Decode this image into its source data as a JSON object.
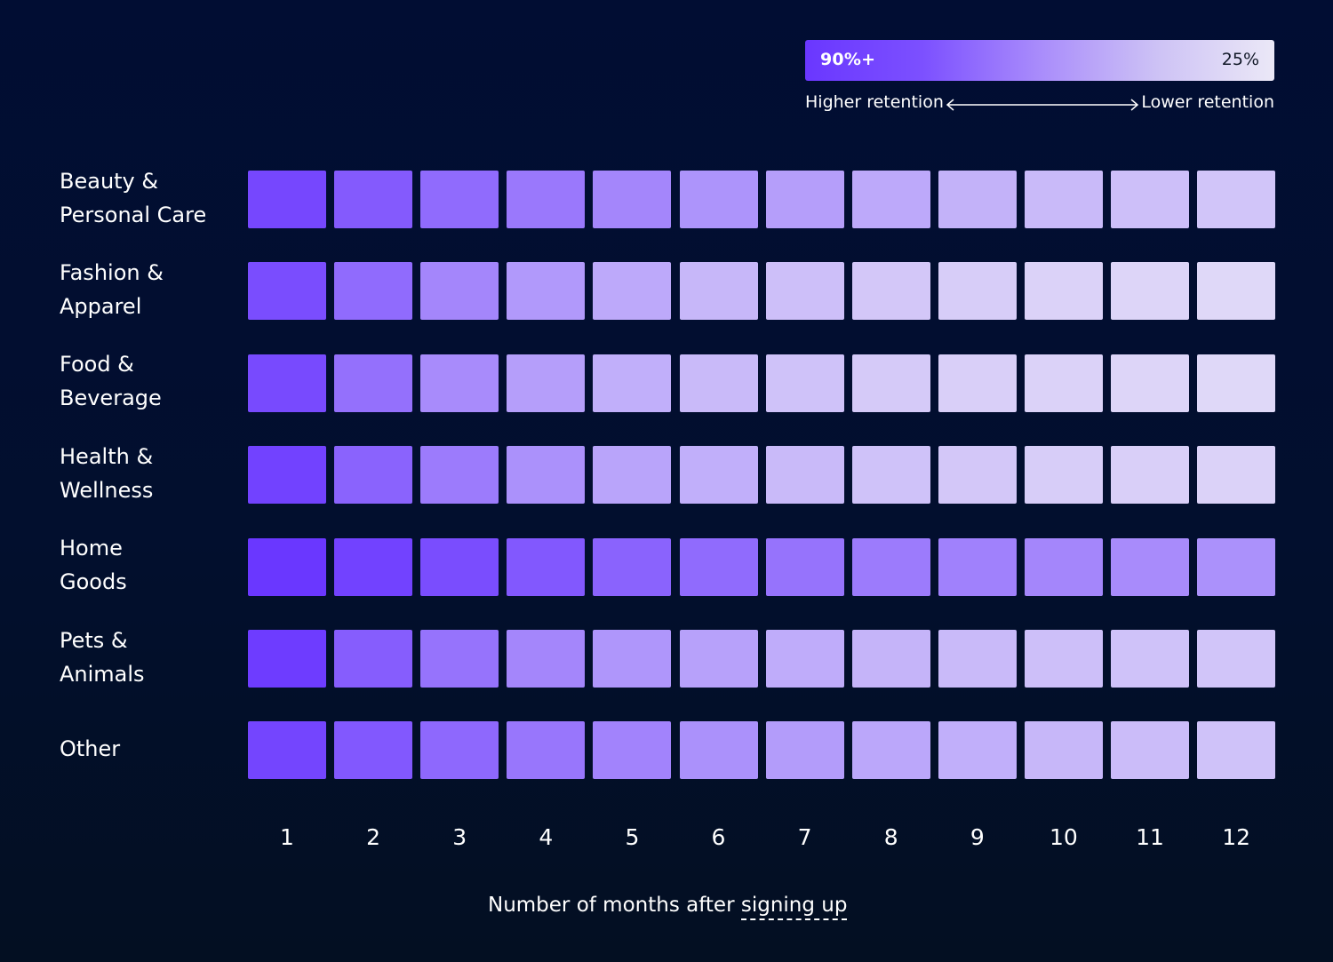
{
  "legend": {
    "high_label": "90%+",
    "low_label": "25%",
    "higher_text": "Higher retention",
    "lower_text": "Lower retention",
    "colors": [
      "#6a37ff",
      "#ebe8f7"
    ]
  },
  "chart_data": {
    "type": "heatmap",
    "value_range": [
      25,
      90
    ],
    "rows": [
      {
        "label_lines": [
          "Beauty &",
          "Personal Care"
        ],
        "values": [
          84,
          77,
          71,
          66,
          61,
          56,
          52,
          48,
          45,
          42,
          40,
          38
        ]
      },
      {
        "label_lines": [
          "Fashion &",
          "Apparel"
        ],
        "values": [
          82,
          71,
          61,
          54,
          48,
          43,
          40,
          37,
          35,
          33,
          32,
          31
        ]
      },
      {
        "label_lines": [
          "Food &",
          "Beverage"
        ],
        "values": [
          83,
          69,
          59,
          52,
          46,
          42,
          39,
          36,
          34,
          33,
          32,
          31
        ]
      },
      {
        "label_lines": [
          "Health &",
          "Wellness"
        ],
        "values": [
          86,
          74,
          65,
          57,
          50,
          46,
          42,
          39,
          37,
          35,
          34,
          33
        ]
      },
      {
        "label_lines": [
          "Home",
          "Goods"
        ],
        "values": [
          92,
          86,
          82,
          78,
          74,
          71,
          68,
          65,
          63,
          61,
          59,
          57
        ]
      },
      {
        "label_lines": [
          "Pets &",
          "Animals"
        ],
        "values": [
          88,
          76,
          68,
          61,
          55,
          51,
          47,
          44,
          42,
          40,
          39,
          38
        ]
      },
      {
        "label_lines": [
          "Other"
        ],
        "values": [
          85,
          78,
          72,
          67,
          62,
          57,
          53,
          49,
          46,
          43,
          41,
          39
        ]
      }
    ],
    "columns": [
      "1",
      "2",
      "3",
      "4",
      "5",
      "6",
      "7",
      "8",
      "9",
      "10",
      "11",
      "12"
    ],
    "xlabel": "Number of months after",
    "xlabel_emphasis": "signing up"
  }
}
